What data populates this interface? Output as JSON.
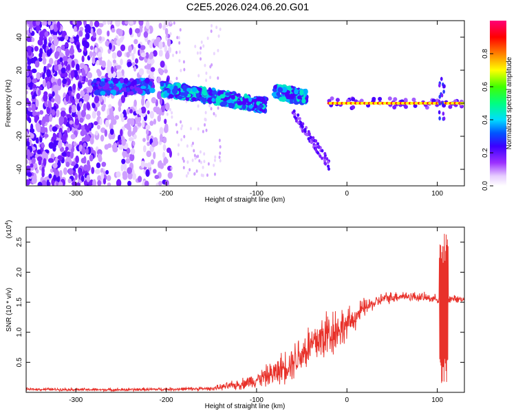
{
  "page": {
    "title": "C2E5.2026.024.06.20.G01"
  },
  "chart_data": [
    {
      "type": "heatmap",
      "title": "",
      "xlabel": "Height of straight line (km)",
      "ylabel": "Frequency (Hz)",
      "xlim": [
        -355,
        130
      ],
      "ylim": [
        -50,
        50
      ],
      "xticks": [
        -300,
        -200,
        -100,
        0,
        100
      ],
      "yticks": [
        -40,
        -20,
        0,
        20,
        40
      ],
      "colorbar": {
        "label": "Normalized spectral amplitude",
        "range": [
          0,
          1
        ],
        "ticks": [
          "0.0",
          "0.2",
          "0.4",
          "0.6",
          "0.8"
        ],
        "colormap": "rainbow (white-violet-blue-cyan-green-yellow-red-magenta)"
      },
      "features": [
        {
          "desc": "diffuse noise",
          "x": [
            -355,
            -195
          ],
          "y": [
            -50,
            50
          ]
        },
        {
          "desc": "signal band",
          "x": [
            -280,
            -215
          ],
          "y": [
            6,
            15
          ]
        },
        {
          "desc": "signal band",
          "x": [
            -205,
            -90
          ],
          "y": [
            -5,
            12
          ]
        },
        {
          "desc": "signal band",
          "x": [
            -80,
            -20
          ],
          "y": [
            -40,
            12
          ]
        },
        {
          "desc": "peak line",
          "x": [
            -20,
            130
          ],
          "y": [
            0,
            0
          ]
        }
      ]
    },
    {
      "type": "line",
      "title": "",
      "xlabel": "Height of straight line (km)",
      "ylabel": "SNR (10 * v/v)",
      "y_multiplier": "(x10^4)",
      "y_multiplier_base": "(x10",
      "y_multiplier_exp": "4",
      "y_multiplier_close": ")",
      "xlim": [
        -355,
        130
      ],
      "ylim": [
        0,
        2.75
      ],
      "xticks": [
        -300,
        -200,
        -100,
        0,
        100
      ],
      "yticks": [
        "0.5",
        "1.0",
        "1.5",
        "2.0",
        "2.5"
      ],
      "color": "#e8312a",
      "envelope": [
        {
          "x": -355,
          "y": 0.05
        },
        {
          "x": -250,
          "y": 0.04
        },
        {
          "x": -200,
          "y": 0.05
        },
        {
          "x": -150,
          "y": 0.06
        },
        {
          "x": -120,
          "y": 0.12
        },
        {
          "x": -100,
          "y": 0.2
        },
        {
          "x": -80,
          "y": 0.3
        },
        {
          "x": -60,
          "y": 0.5
        },
        {
          "x": -40,
          "y": 0.75
        },
        {
          "x": -20,
          "y": 0.95
        },
        {
          "x": 0,
          "y": 1.1
        },
        {
          "x": 20,
          "y": 1.4
        },
        {
          "x": 40,
          "y": 1.55
        },
        {
          "x": 60,
          "y": 1.6
        },
        {
          "x": 80,
          "y": 1.58
        },
        {
          "x": 100,
          "y": 1.55
        },
        {
          "x": 110,
          "y": 1.55
        },
        {
          "x": 130,
          "y": 1.55
        }
      ],
      "noise_amplitude": [
        {
          "x": -355,
          "a": 0.02
        },
        {
          "x": -150,
          "a": 0.03
        },
        {
          "x": -100,
          "a": 0.12
        },
        {
          "x": -50,
          "a": 0.35
        },
        {
          "x": -20,
          "a": 0.45
        },
        {
          "x": 0,
          "a": 0.25
        },
        {
          "x": 30,
          "a": 0.1
        },
        {
          "x": 130,
          "a": 0.05
        }
      ],
      "spike": {
        "x": [
          102,
          112
        ],
        "y_min": 0.07,
        "y_max": 2.75
      }
    }
  ]
}
